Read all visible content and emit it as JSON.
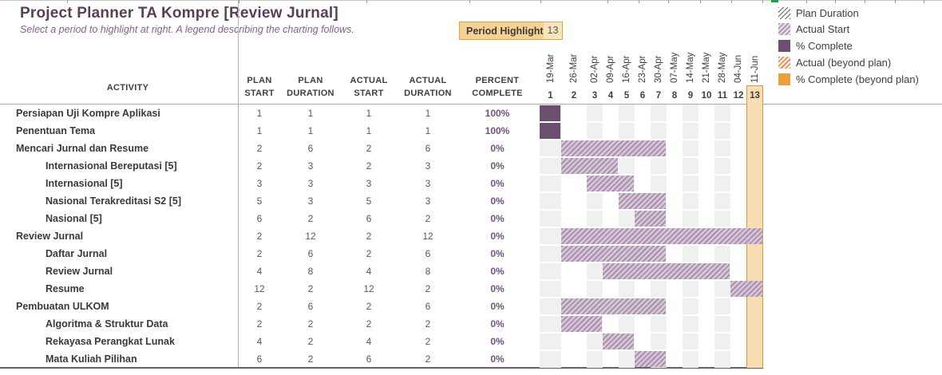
{
  "header": {
    "title": "Project Planner TA Kompre [Review Jurnal]",
    "subtitle": "Select a period to highlight at right.  A legend describing the charting follows."
  },
  "period_highlight": {
    "label": "Period Highlight",
    "value": "13"
  },
  "legend": [
    {
      "label": "Plan Duration",
      "swatch": "hatch-gray"
    },
    {
      "label": "Actual Start",
      "swatch": "hatch-purple"
    },
    {
      "label": "% Complete",
      "swatch": "solid-purple"
    },
    {
      "label": "Actual (beyond plan)",
      "swatch": "hatch-orange"
    },
    {
      "label": "% Complete (beyond plan)",
      "swatch": "solid-orange"
    }
  ],
  "table": {
    "activity_header": "ACTIVITY",
    "columns": [
      {
        "line1": "PLAN",
        "line2": "START"
      },
      {
        "line1": "PLAN",
        "line2": "DURATION"
      },
      {
        "line1": "ACTUAL",
        "line2": "START"
      },
      {
        "line1": "ACTUAL",
        "line2": "DURATION"
      },
      {
        "line1": "PERCENT",
        "line2": "COMPLETE"
      }
    ]
  },
  "timeline": {
    "dates": [
      "19-Mar",
      "26-Mar",
      "02-Apr",
      "09-Apr",
      "16-Apr",
      "23-Apr",
      "30-Apr",
      "07-May",
      "14-May",
      "21-May",
      "28-May",
      "04-Jun",
      "11-Jun"
    ],
    "periods": [
      "1",
      "2",
      "3",
      "4",
      "5",
      "6",
      "7",
      "8",
      "9",
      "10",
      "11",
      "12",
      "13"
    ],
    "highlight_period": 13
  },
  "rows": [
    {
      "activity": "Persiapan Uji Kompre Aplikasi",
      "indent": 0,
      "plan_start": 1,
      "plan_duration": 1,
      "actual_start": 1,
      "actual_duration": 1,
      "percent_complete": "100%"
    },
    {
      "activity": "Penentuan Tema",
      "indent": 0,
      "plan_start": 1,
      "plan_duration": 1,
      "actual_start": 1,
      "actual_duration": 1,
      "percent_complete": "100%"
    },
    {
      "activity": "Mencari Jurnal dan Resume",
      "indent": 0,
      "plan_start": 2,
      "plan_duration": 6,
      "actual_start": 2,
      "actual_duration": 6,
      "percent_complete": "0%"
    },
    {
      "activity": "Internasional Bereputasi [5]",
      "indent": 1,
      "plan_start": 2,
      "plan_duration": 3,
      "actual_start": 2,
      "actual_duration": 3,
      "percent_complete": "0%"
    },
    {
      "activity": "Internasional [5]",
      "indent": 1,
      "plan_start": 3,
      "plan_duration": 3,
      "actual_start": 3,
      "actual_duration": 3,
      "percent_complete": "0%"
    },
    {
      "activity": "Nasional Terakreditasi S2 [5]",
      "indent": 1,
      "plan_start": 5,
      "plan_duration": 3,
      "actual_start": 5,
      "actual_duration": 3,
      "percent_complete": "0%"
    },
    {
      "activity": "Nasional [5]",
      "indent": 1,
      "plan_start": 6,
      "plan_duration": 2,
      "actual_start": 6,
      "actual_duration": 2,
      "percent_complete": "0%"
    },
    {
      "activity": "Review Jurnal",
      "indent": 0,
      "plan_start": 2,
      "plan_duration": 12,
      "actual_start": 2,
      "actual_duration": 12,
      "percent_complete": "0%"
    },
    {
      "activity": "Daftar Jurnal",
      "indent": 1,
      "plan_start": 2,
      "plan_duration": 6,
      "actual_start": 2,
      "actual_duration": 6,
      "percent_complete": "0%"
    },
    {
      "activity": "Review Jurnal",
      "indent": 1,
      "plan_start": 4,
      "plan_duration": 8,
      "actual_start": 4,
      "actual_duration": 8,
      "percent_complete": "0%"
    },
    {
      "activity": "Resume",
      "indent": 1,
      "plan_start": 12,
      "plan_duration": 2,
      "actual_start": 12,
      "actual_duration": 2,
      "percent_complete": "0%"
    },
    {
      "activity": "Pembuatan ULKOM",
      "indent": 0,
      "plan_start": 2,
      "plan_duration": 6,
      "actual_start": 2,
      "actual_duration": 6,
      "percent_complete": "0%"
    },
    {
      "activity": "Algoritma & Struktur Data",
      "indent": 1,
      "plan_start": 2,
      "plan_duration": 2,
      "actual_start": 2,
      "actual_duration": 2,
      "percent_complete": "0%"
    },
    {
      "activity": "Rekayasa Perangkat Lunak",
      "indent": 1,
      "plan_start": 4,
      "plan_duration": 2,
      "actual_start": 4,
      "actual_duration": 2,
      "percent_complete": "0%"
    },
    {
      "activity": "Mata Kuliah Pilihan",
      "indent": 1,
      "plan_start": 6,
      "plan_duration": 2,
      "actual_start": 6,
      "actual_duration": 2,
      "percent_complete": "0%"
    }
  ],
  "colors": {
    "title_text": "#5a4057",
    "subtitle_text": "#82618a",
    "complete_solid": "#6c4e6e",
    "actual_hatch": "#ab90ae",
    "beyond_solid": "#e9a23b",
    "highlight_fill": "#f8ddb2",
    "highlight_border": "#cf9c42",
    "percent_text": "#70527c",
    "stripe_gray": "#f0f0f0"
  }
}
